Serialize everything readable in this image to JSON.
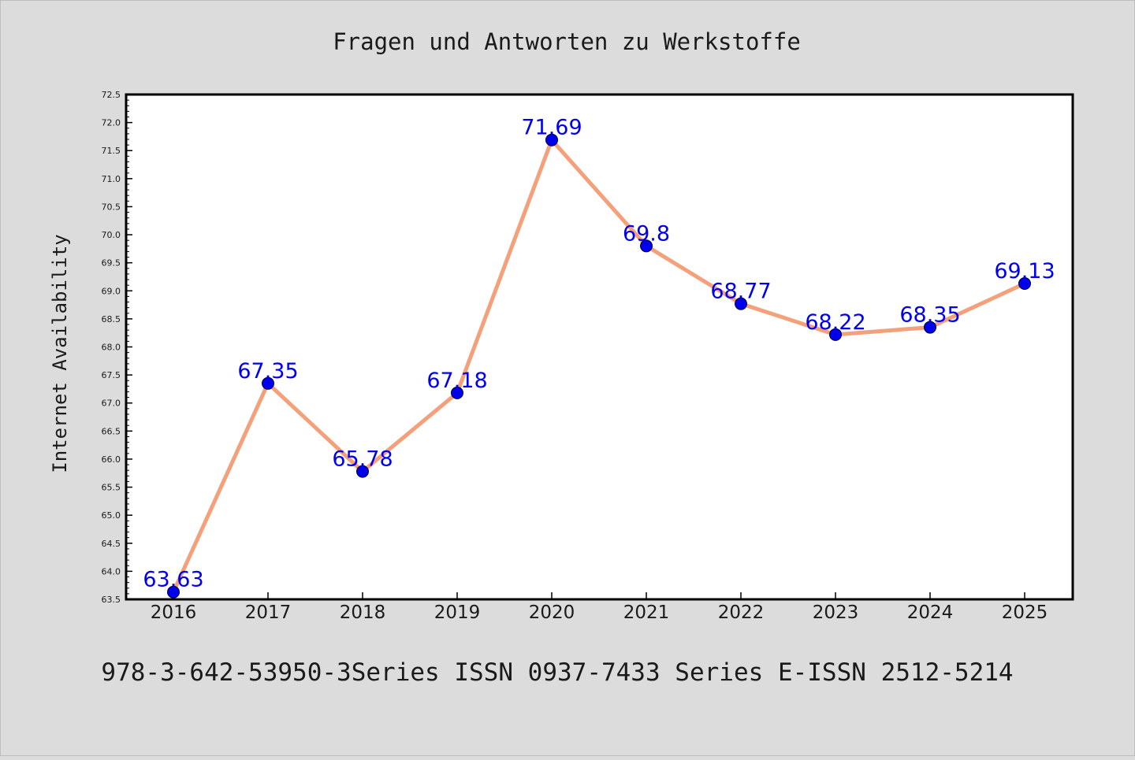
{
  "chart_data": {
    "type": "line",
    "title": "Fragen und Antworten zu Werkstoffe",
    "footer": "978-3-642-53950-3Series ISSN 0937-7433 Series E-ISSN 2512-5214",
    "ylabel": "Internet Availability",
    "xlabel": "",
    "categories": [
      "2016",
      "2017",
      "2018",
      "2019",
      "2020",
      "2021",
      "2022",
      "2023",
      "2024",
      "2025"
    ],
    "series": [
      {
        "values": [
          63.63,
          67.35,
          65.78,
          67.18,
          71.69,
          69.8,
          68.77,
          68.22,
          68.35,
          69.13
        ],
        "labels": [
          "63.63",
          "67.35",
          "65.78",
          "67.18",
          "71.69",
          "69.8",
          "68.77",
          "68.22",
          "68.35",
          "69.13"
        ]
      }
    ],
    "ylim": [
      63.5,
      72.5
    ],
    "ytick_step": 0.5,
    "ytick_labels": [
      "63.5",
      "64.0",
      "64.5",
      "65.0",
      "65.5",
      "66.0",
      "66.5",
      "67.0",
      "67.5",
      "68.0",
      "68.5",
      "69.0",
      "69.5",
      "70.0",
      "70.5",
      "71.0",
      "71.5",
      "72.0",
      "72.5"
    ],
    "grid": false,
    "legend": "none",
    "colors": {
      "background": "#dcdcdc",
      "plot_background": "#ffffff",
      "line": "#f4a07a",
      "marker": "#0000ee",
      "marker_edge": "#000033",
      "data_label": "#0000ee"
    }
  }
}
